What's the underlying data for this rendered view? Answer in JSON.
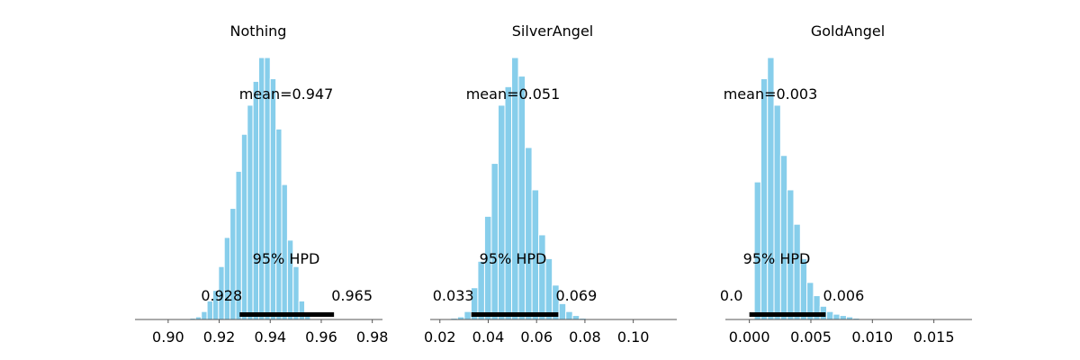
{
  "chart_data": [
    {
      "type": "histogram",
      "title": "Nothing",
      "xlim": [
        0.887,
        0.984
      ],
      "xticks": [
        0.9,
        0.92,
        0.94,
        0.96,
        0.98
      ],
      "xtick_labels": [
        "0.90",
        "0.92",
        "0.94",
        "0.96",
        "0.98"
      ],
      "bin_start": 0.9085,
      "bin_width": 0.00225,
      "counts": [
        0.5,
        1,
        3,
        7,
        11,
        20,
        31,
        42,
        56,
        70,
        81,
        90,
        99,
        99,
        91,
        72,
        51,
        30,
        20,
        7,
        2
      ],
      "mean_label": "mean=0.947",
      "hpd_label": "95% HPD",
      "hpd": [
        0.928,
        0.965
      ],
      "hpd_low_label": "0.928",
      "hpd_high_label": "0.965"
    },
    {
      "type": "histogram",
      "title": "SilverAngel",
      "xlim": [
        0.016,
        0.118
      ],
      "xticks": [
        0.02,
        0.04,
        0.06,
        0.08,
        0.1
      ],
      "xtick_labels": [
        "0.02",
        "0.04",
        "0.06",
        "0.08",
        "0.10"
      ],
      "bin_start": 0.0245,
      "bin_width": 0.0028,
      "counts": [
        0.5,
        1,
        3,
        12,
        22,
        39,
        59,
        81,
        88,
        99,
        92,
        65,
        49,
        32,
        23,
        13,
        6,
        3,
        1.5,
        0.5
      ],
      "mean_label": "mean=0.051",
      "hpd_label": "95% HPD",
      "hpd": [
        0.033,
        0.069
      ],
      "hpd_low_label": "0.033",
      "hpd_high_label": "0.069"
    },
    {
      "type": "histogram",
      "title": "GoldAngel",
      "xlim": [
        -0.00195,
        0.0181
      ],
      "xticks": [
        0.0,
        0.005,
        0.01,
        0.015
      ],
      "xtick_labels": [
        "0.000",
        "0.005",
        "0.010",
        "0.015"
      ],
      "bin_start": 0.0004,
      "bin_width": 0.000535,
      "counts": [
        52,
        91,
        99,
        81,
        62,
        49,
        36,
        23,
        14,
        9,
        5,
        3,
        2,
        1.5,
        1,
        0.5
      ],
      "mean_label": "mean=0.003",
      "hpd_label": "95% HPD",
      "hpd": [
        0.0,
        0.0062
      ],
      "hpd_low_label": "0.0",
      "hpd_high_label": "0.006"
    }
  ],
  "colors": {
    "bar": "#87ceeb",
    "bar_edge": "#ffffff",
    "hpd_line": "#000000",
    "axis": "#555555"
  }
}
